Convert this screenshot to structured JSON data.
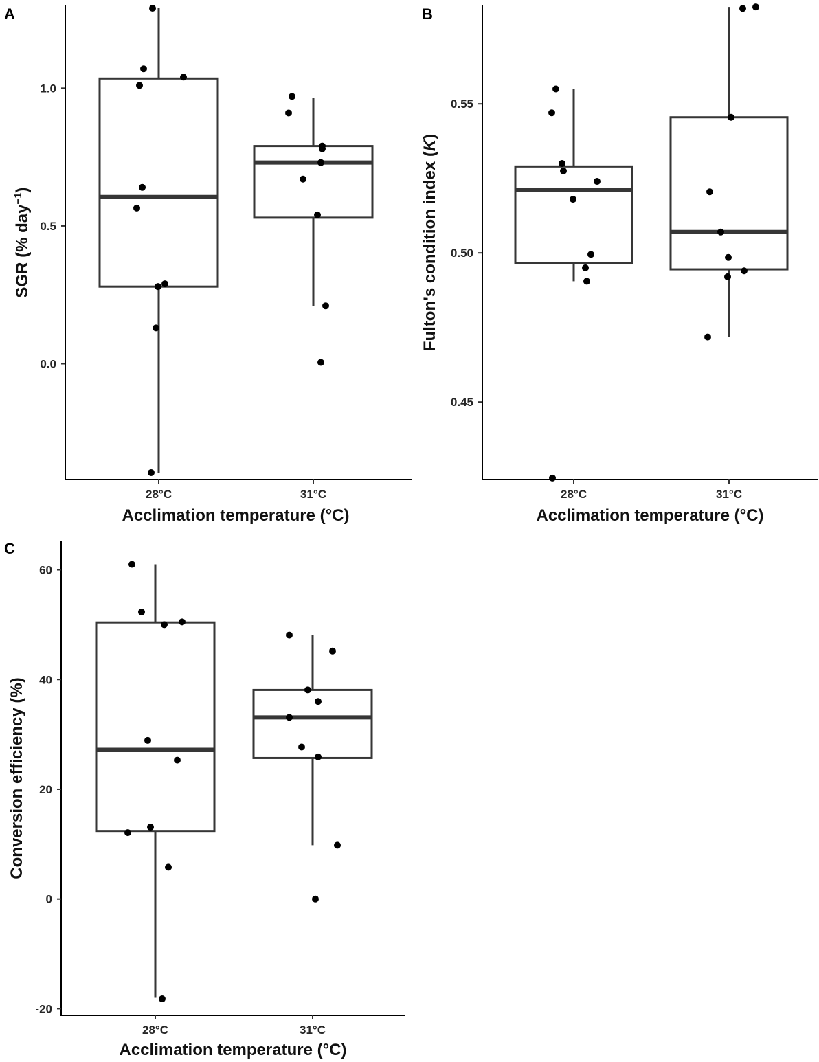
{
  "figure": {
    "background": "#ffffff",
    "box_color": "#363636",
    "point_color": "#000000",
    "axis_color": "#000000"
  },
  "chart_data": [
    {
      "panel": "A",
      "type": "box",
      "xlabel": "Acclimation temperature (°C)",
      "ylabel_parts": [
        "SGR (% day",
        "−1",
        ")"
      ],
      "categories": [
        "28°C",
        "31°C"
      ],
      "ylim": [
        -0.42,
        1.3
      ],
      "yticks": [
        0.0,
        0.5,
        1.0
      ],
      "ytick_labels": [
        "0.0",
        "0.5",
        "1.0"
      ],
      "boxes": [
        {
          "category": "28°C",
          "whisker_low": -0.395,
          "q1": 0.28,
          "median": 0.605,
          "q3": 1.035,
          "whisker_high": 1.29
        },
        {
          "category": "31°C",
          "whisker_low": 0.21,
          "q1": 0.53,
          "median": 0.73,
          "q3": 0.79,
          "whisker_high": 0.965
        }
      ],
      "points": [
        {
          "category": "28°C",
          "jitter": -0.32,
          "y": 0.565
        },
        {
          "category": "28°C",
          "jitter": -0.28,
          "y": 1.01
        },
        {
          "category": "28°C",
          "jitter": -0.24,
          "y": 0.64
        },
        {
          "category": "28°C",
          "jitter": -0.22,
          "y": 1.07
        },
        {
          "category": "28°C",
          "jitter": -0.09,
          "y": 1.29
        },
        {
          "category": "28°C",
          "jitter": -0.04,
          "y": 0.13
        },
        {
          "category": "28°C",
          "jitter": -0.01,
          "y": 0.28
        },
        {
          "category": "28°C",
          "jitter": 0.09,
          "y": 0.29
        },
        {
          "category": "28°C",
          "jitter": -0.11,
          "y": -0.395
        },
        {
          "category": "28°C",
          "jitter": 0.36,
          "y": 1.04
        },
        {
          "category": "31°C",
          "jitter": -0.36,
          "y": 0.91
        },
        {
          "category": "31°C",
          "jitter": -0.31,
          "y": 0.97
        },
        {
          "category": "31°C",
          "jitter": -0.15,
          "y": 0.67
        },
        {
          "category": "31°C",
          "jitter": 0.06,
          "y": 0.54
        },
        {
          "category": "31°C",
          "jitter": 0.11,
          "y": 0.73
        },
        {
          "category": "31°C",
          "jitter": 0.13,
          "y": 0.78
        },
        {
          "category": "31°C",
          "jitter": 0.13,
          "y": 0.79
        },
        {
          "category": "31°C",
          "jitter": 0.11,
          "y": 0.005
        },
        {
          "category": "31°C",
          "jitter": 0.18,
          "y": 0.21
        }
      ]
    },
    {
      "panel": "B",
      "type": "box",
      "xlabel": "Acclimation temperature (°C)",
      "ylabel_parts": [
        "Fulton's condition index (",
        "K",
        ")"
      ],
      "categories": [
        "28°C",
        "31°C"
      ],
      "ylim": [
        0.424,
        0.583
      ],
      "yticks": [
        0.45,
        0.5,
        0.55
      ],
      "ytick_labels": [
        "0.45",
        "0.50",
        "0.55"
      ],
      "boxes": [
        {
          "category": "28°C",
          "whisker_low": 0.4905,
          "q1": 0.4965,
          "median": 0.521,
          "q3": 0.529,
          "whisker_high": 0.555
        },
        {
          "category": "31°C",
          "whisker_low": 0.4718,
          "q1": 0.4945,
          "median": 0.507,
          "q3": 0.5455,
          "whisker_high": 0.5825
        }
      ],
      "points": [
        {
          "category": "28°C",
          "jitter": -0.32,
          "y": 0.547
        },
        {
          "category": "28°C",
          "jitter": -0.26,
          "y": 0.555
        },
        {
          "category": "28°C",
          "jitter": -0.17,
          "y": 0.53
        },
        {
          "category": "28°C",
          "jitter": -0.15,
          "y": 0.5275
        },
        {
          "category": "28°C",
          "jitter": -0.01,
          "y": 0.518
        },
        {
          "category": "28°C",
          "jitter": 0.17,
          "y": 0.495
        },
        {
          "category": "28°C",
          "jitter": 0.19,
          "y": 0.4905
        },
        {
          "category": "28°C",
          "jitter": 0.25,
          "y": 0.4995
        },
        {
          "category": "28°C",
          "jitter": 0.34,
          "y": 0.524
        },
        {
          "category": "28°C",
          "jitter": -0.31,
          "y": 0.4245
        },
        {
          "category": "31°C",
          "jitter": -0.31,
          "y": 0.4718
        },
        {
          "category": "31°C",
          "jitter": -0.28,
          "y": 0.5205
        },
        {
          "category": "31°C",
          "jitter": -0.12,
          "y": 0.507
        },
        {
          "category": "31°C",
          "jitter": -0.02,
          "y": 0.492
        },
        {
          "category": "31°C",
          "jitter": -0.01,
          "y": 0.4985
        },
        {
          "category": "31°C",
          "jitter": 0.03,
          "y": 0.5455
        },
        {
          "category": "31°C",
          "jitter": 0.2,
          "y": 0.582
        },
        {
          "category": "31°C",
          "jitter": 0.22,
          "y": 0.494
        },
        {
          "category": "31°C",
          "jitter": 0.39,
          "y": 0.5825
        }
      ]
    },
    {
      "panel": "C",
      "type": "box",
      "xlabel": "Acclimation temperature (°C)",
      "ylabel_parts": [
        "Conversion efficiency (%)"
      ],
      "categories": [
        "28°C",
        "31°C"
      ],
      "ylim": [
        -21.2,
        65.2
      ],
      "yticks": [
        -20,
        0,
        20,
        40,
        60
      ],
      "ytick_labels": [
        "-20",
        "0",
        "20",
        "40",
        "60"
      ],
      "boxes": [
        {
          "category": "28°C",
          "whisker_low": -18.0,
          "q1": 12.4,
          "median": 27.2,
          "q3": 50.4,
          "whisker_high": 61.0
        },
        {
          "category": "31°C",
          "whisker_low": 9.8,
          "q1": 25.7,
          "median": 33.1,
          "q3": 38.1,
          "whisker_high": 48.1
        }
      ],
      "points": [
        {
          "category": "28°C",
          "jitter": -0.4,
          "y": 12.1
        },
        {
          "category": "28°C",
          "jitter": -0.34,
          "y": 61.0
        },
        {
          "category": "28°C",
          "jitter": -0.2,
          "y": 52.3
        },
        {
          "category": "28°C",
          "jitter": -0.11,
          "y": 28.9
        },
        {
          "category": "28°C",
          "jitter": -0.07,
          "y": 13.1
        },
        {
          "category": "28°C",
          "jitter": 0.1,
          "y": -18.2
        },
        {
          "category": "28°C",
          "jitter": 0.13,
          "y": 50.0
        },
        {
          "category": "28°C",
          "jitter": 0.19,
          "y": 5.8
        },
        {
          "category": "28°C",
          "jitter": 0.32,
          "y": 25.3
        },
        {
          "category": "28°C",
          "jitter": 0.39,
          "y": 50.5
        },
        {
          "category": "31°C",
          "jitter": -0.34,
          "y": 48.1
        },
        {
          "category": "31°C",
          "jitter": -0.34,
          "y": 33.1
        },
        {
          "category": "31°C",
          "jitter": -0.16,
          "y": 27.7
        },
        {
          "category": "31°C",
          "jitter": -0.07,
          "y": 38.1
        },
        {
          "category": "31°C",
          "jitter": 0.04,
          "y": 0.0
        },
        {
          "category": "31°C",
          "jitter": 0.08,
          "y": 25.9
        },
        {
          "category": "31°C",
          "jitter": 0.08,
          "y": 36.0
        },
        {
          "category": "31°C",
          "jitter": 0.29,
          "y": 45.2
        },
        {
          "category": "31°C",
          "jitter": 0.36,
          "y": 9.8
        }
      ]
    }
  ]
}
